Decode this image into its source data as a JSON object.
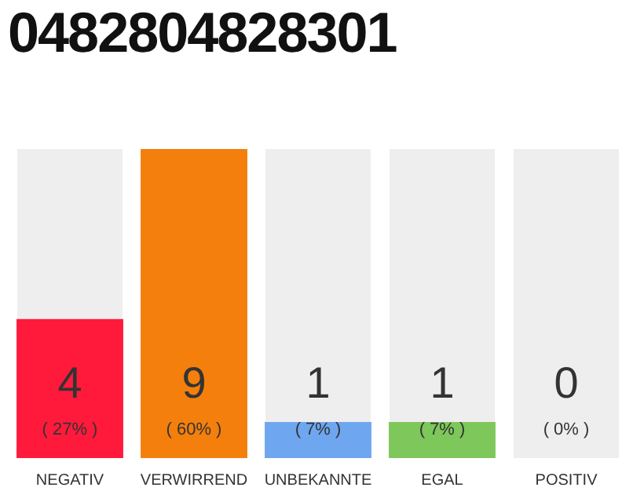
{
  "chart_data": {
    "type": "bar",
    "title": "0482804828301",
    "categories": [
      "NEGATIV",
      "VERWIRREND",
      "UNBEKANNTE",
      "EGAL",
      "POSITIV"
    ],
    "values": [
      27,
      60,
      7,
      7,
      0
    ],
    "colors": [
      "#ff1a3c",
      "#f47f0c",
      "#6fa6f0",
      "#7ec75a",
      "#6fa6f0"
    ],
    "value_labels": [
      "( 27% )",
      "( 60% )",
      "( 7% )",
      "( 7% )",
      "( 0% )"
    ],
    "annotations": [
      "4",
      "9",
      "1",
      "1",
      "0"
    ],
    "tick_labels": "x",
    "grid": false,
    "legend": false
  }
}
